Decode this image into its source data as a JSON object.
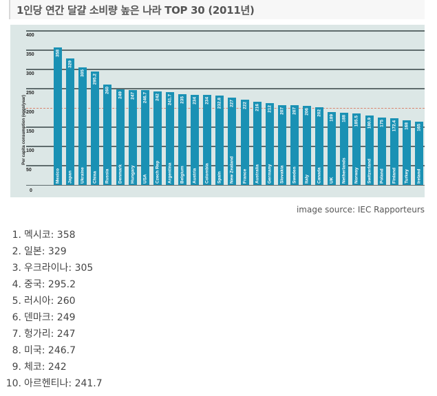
{
  "header": {
    "title": "1인당 연간 달걀 소비량 높은 나라 TOP 30 (2011년)"
  },
  "caption": "image source: IEC Rapporteurs",
  "chart_data": {
    "type": "bar",
    "title": "1인당 연간 달걀 소비량 높은 나라 TOP 30 (2011년)",
    "xlabel": "",
    "ylabel": "Per capita consumption (eggs/year)",
    "ylim": [
      0,
      400
    ],
    "yticks": [
      0,
      50,
      100,
      150,
      200,
      250,
      300,
      350,
      400
    ],
    "grid": true,
    "reference_line": {
      "value": 200,
      "style": "dashed",
      "color": "#d9826d"
    },
    "bar_color": "#1a91b4",
    "background_color": "#dce7e6",
    "categories": [
      "Mexico",
      "Japan",
      "Ukraine",
      "China",
      "Russia",
      "Denmark",
      "Hungary",
      "USA",
      "Czech Rep",
      "Argentina",
      "Belgium",
      "Austria",
      "Colombia",
      "Spain",
      "New Zealand",
      "France",
      "Australia",
      "Germany",
      "Slovakia",
      "Sweden",
      "Italy",
      "Canada",
      "UK",
      "Netherlands",
      "Norway",
      "Switzerland",
      "Poland",
      "Finland",
      "Turkey",
      "Ireland"
    ],
    "values": [
      358,
      329,
      305,
      295.2,
      260,
      249,
      247,
      246.7,
      242,
      241.7,
      235,
      234,
      234,
      232.8,
      227,
      222,
      216,
      212,
      207,
      207,
      206,
      202,
      189,
      188,
      185.5,
      180.9,
      175,
      172.4,
      168,
      165
    ],
    "value_labels": [
      "358",
      "329",
      "305",
      "295.2",
      "260",
      "249",
      "247",
      "246.7",
      "242",
      "241.7",
      "235",
      "234",
      "234",
      "232.8",
      "227",
      "222",
      "216",
      "212",
      "207",
      "207",
      "206",
      "202",
      "189",
      "188",
      "185.5",
      "180.9",
      "175",
      "172.4",
      "168",
      "165"
    ]
  },
  "ranking": [
    {
      "rank": "1.",
      "text": "멕시코: 358"
    },
    {
      "rank": "2.",
      "text": "일본: 329"
    },
    {
      "rank": "3.",
      "text": "우크라이나: 305"
    },
    {
      "rank": "4.",
      "text": "중국: 295.2"
    },
    {
      "rank": "5.",
      "text": "러시아: 260"
    },
    {
      "rank": "6.",
      "text": "덴마크: 249"
    },
    {
      "rank": "7.",
      "text": "헝가리: 247"
    },
    {
      "rank": "8.",
      "text": "미국: 246.7"
    },
    {
      "rank": "9.",
      "text": "체코: 242"
    },
    {
      "rank": "10.",
      "text": "아르헨티나: 241.7"
    }
  ]
}
